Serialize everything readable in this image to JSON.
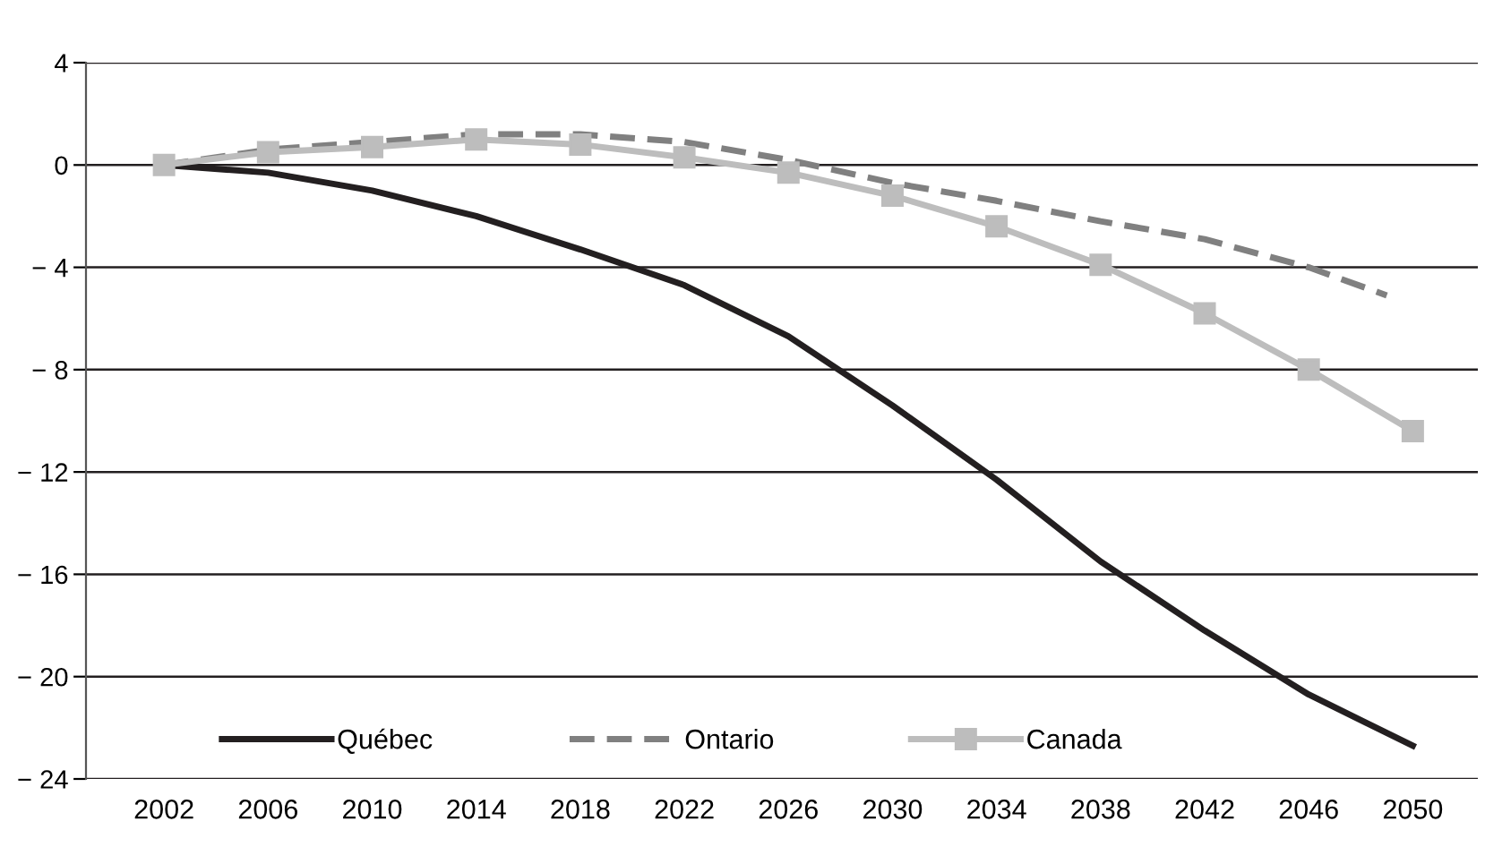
{
  "chart_data": {
    "type": "line",
    "x": [
      2002,
      2006,
      2010,
      2014,
      2018,
      2022,
      2026,
      2030,
      2034,
      2038,
      2042,
      2046,
      2050
    ],
    "series": [
      {
        "name": "Québec",
        "color": "#231f20",
        "line_style": "solid",
        "marker": "none",
        "values": [
          0,
          -0.3,
          -1.0,
          -2.0,
          -3.3,
          -4.7,
          -6.7,
          -9.4,
          -12.3,
          -15.5,
          -18.2,
          -20.7,
          -22.7
        ]
      },
      {
        "name": "Ontario",
        "color": "#808080",
        "line_style": "dashed",
        "marker": "none",
        "x": [
          2002,
          2006,
          2010,
          2014,
          2018,
          2022,
          2026,
          2030,
          2034,
          2038,
          2042,
          2046,
          2049
        ],
        "values": [
          0,
          0.6,
          0.9,
          1.2,
          1.2,
          0.9,
          0.2,
          -0.7,
          -1.4,
          -2.2,
          -2.9,
          -4.0,
          -5.1
        ]
      },
      {
        "name": "Canada",
        "color": "#bdbdbd",
        "line_style": "solid",
        "marker": "square",
        "values": [
          0,
          0.5,
          0.7,
          1.0,
          0.8,
          0.3,
          -0.3,
          -1.2,
          -2.4,
          -3.9,
          -5.8,
          -8.0,
          -10.4
        ]
      }
    ],
    "xlim": [
      1999,
      2052.5
    ],
    "xticks": [
      2002,
      2006,
      2010,
      2014,
      2018,
      2022,
      2026,
      2030,
      2034,
      2038,
      2042,
      2046,
      2050
    ],
    "ylim": [
      -24,
      4
    ],
    "yticks": [
      4,
      0,
      {
        "value": -4,
        "label": "− 4"
      },
      {
        "value": -8,
        "label": "− 8"
      },
      {
        "value": -12,
        "label": "− 12"
      },
      {
        "value": -16,
        "label": "− 16"
      },
      {
        "value": -20,
        "label": "− 20"
      },
      {
        "value": -24,
        "label": "− 24"
      }
    ],
    "grid": "y",
    "legend": "bottom left"
  }
}
